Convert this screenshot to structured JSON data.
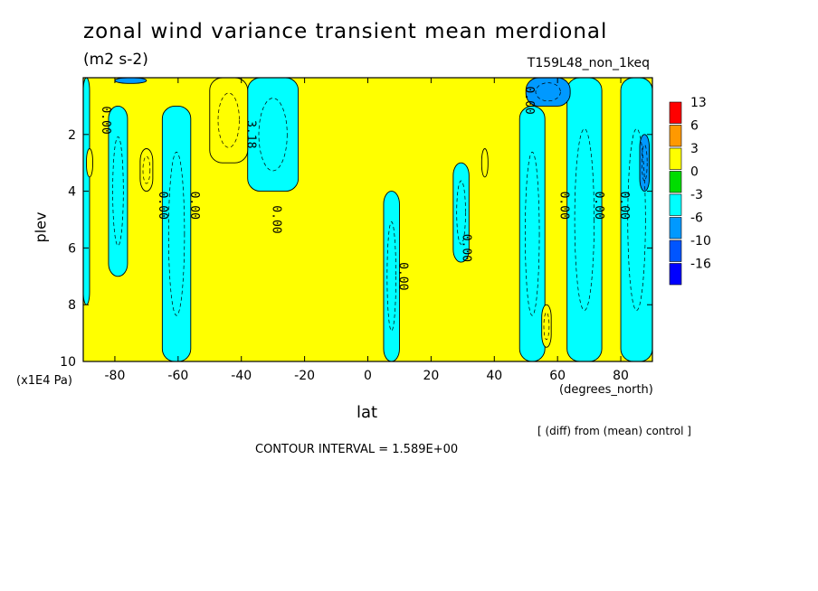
{
  "chart_data": {
    "type": "heatmap",
    "title": "zonal wind variance transient mean merdional",
    "units": "(m2 s-2)",
    "run_name": "T159L48_non_1keq",
    "xlabel": "lat",
    "x_units": "(degrees_north)",
    "ylabel": "plev",
    "y_units": "(x1E4 Pa)",
    "xlim": [
      -90,
      90
    ],
    "ylim": [
      0,
      10
    ],
    "y_inverted": true,
    "x_ticks": [
      "-80",
      "-60",
      "-40",
      "-20",
      "0",
      "20",
      "40",
      "60",
      "80"
    ],
    "y_ticks": [
      "2",
      "4",
      "6",
      "8",
      "10"
    ],
    "note": "[ (diff) from (mean) control ]",
    "contour_interval": "CONTOUR INTERVAL = 1.589E+00",
    "colorbar": {
      "labels": [
        "13",
        "6",
        "3",
        "0",
        "-3",
        "-6",
        "-10",
        "-16"
      ],
      "colors": [
        "#ff0000",
        "#ff9900",
        "#ffff00",
        "#00dd00",
        "#00ffff",
        "#0099ff",
        "#0055ff",
        "#0000ff"
      ]
    },
    "regions": [
      {
        "level": "-3",
        "lat_range": [
          -90,
          -88
        ],
        "plev_range": [
          0,
          8
        ]
      },
      {
        "level": "-3",
        "lat_range": [
          -82,
          -76
        ],
        "plev_range": [
          1,
          7
        ]
      },
      {
        "level": "-3",
        "lat_range": [
          -65,
          -56
        ],
        "plev_range": [
          1,
          10
        ]
      },
      {
        "level": "-3",
        "lat_range": [
          -38,
          -22
        ],
        "plev_range": [
          0,
          4
        ]
      },
      {
        "level": "-3",
        "lat_range": [
          5,
          10
        ],
        "plev_range": [
          4,
          10
        ]
      },
      {
        "level": "-3",
        "lat_range": [
          27,
          32
        ],
        "plev_range": [
          3,
          6.5
        ]
      },
      {
        "level": "-3",
        "lat_range": [
          48,
          56
        ],
        "plev_range": [
          1,
          10
        ]
      },
      {
        "level": "-3",
        "lat_range": [
          63,
          74
        ],
        "plev_range": [
          0,
          10
        ]
      },
      {
        "level": "-3",
        "lat_range": [
          80,
          90
        ],
        "plev_range": [
          0,
          10
        ]
      },
      {
        "level": "3",
        "lat_range": [
          -50,
          -38
        ],
        "plev_range": [
          0,
          3
        ]
      },
      {
        "level": "3",
        "lat_range": [
          -72,
          -68
        ],
        "plev_range": [
          2.5,
          4
        ]
      },
      {
        "level": "3",
        "lat_range": [
          -89,
          -87
        ],
        "plev_range": [
          2.5,
          3.5
        ]
      },
      {
        "level": "3",
        "lat_range": [
          36,
          38
        ],
        "plev_range": [
          2.5,
          3.5
        ]
      },
      {
        "level": "3",
        "lat_range": [
          55,
          58
        ],
        "plev_range": [
          8,
          9.5
        ]
      },
      {
        "level": "-6",
        "lat_range": [
          50,
          64
        ],
        "plev_range": [
          0,
          1
        ]
      },
      {
        "level": "-6",
        "lat_range": [
          -80,
          -70
        ],
        "plev_range": [
          0,
          0.2
        ]
      },
      {
        "level": "-6",
        "lat_range": [
          86,
          89
        ],
        "plev_range": [
          2,
          4
        ]
      }
    ],
    "contour_labels": [
      {
        "text": "0.00",
        "lat": -84,
        "plev": 1
      },
      {
        "text": "0.00",
        "lat": -66,
        "plev": 4
      },
      {
        "text": "0.00",
        "lat": -56,
        "plev": 4
      },
      {
        "text": "3.18",
        "lat": -38,
        "plev": 1.5
      },
      {
        "text": "0.00",
        "lat": -30,
        "plev": 4.5
      },
      {
        "text": "0.00",
        "lat": 10,
        "plev": 6.5
      },
      {
        "text": "0.00",
        "lat": 30,
        "plev": 5.5
      },
      {
        "text": "0.00",
        "lat": 50,
        "plev": 0.3
      },
      {
        "text": "0.00",
        "lat": 61,
        "plev": 4
      },
      {
        "text": "0.00",
        "lat": 72,
        "plev": 4
      },
      {
        "text": "0.00",
        "lat": 80,
        "plev": 4
      }
    ]
  }
}
